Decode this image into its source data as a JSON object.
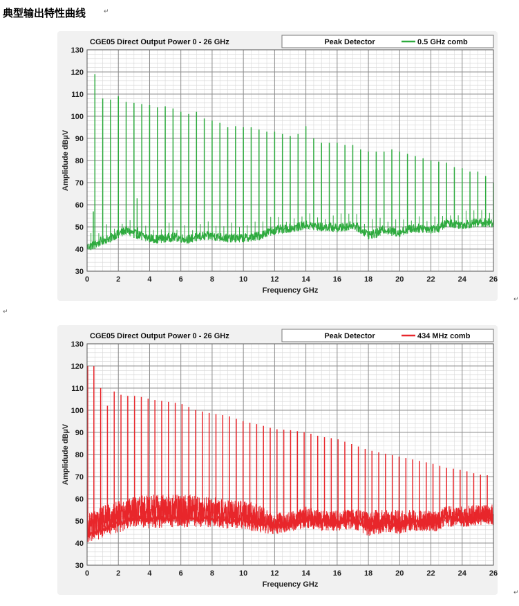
{
  "document": {
    "title": "典型输出特性曲线",
    "para_mark": "↵"
  },
  "chart_data": [
    {
      "type": "line",
      "title": "CGE05 Direct Output Power 0 - 26 GHz",
      "detector_label": "Peak Detector",
      "xlabel": "Frequency GHz",
      "ylabel": "Amplidude dBµV",
      "xlim": [
        0,
        26
      ],
      "ylim": [
        30,
        130
      ],
      "xticks": [
        "0",
        "2",
        "4",
        "6",
        "8",
        "10",
        "12",
        "14",
        "16",
        "18",
        "20",
        "22",
        "24",
        "26"
      ],
      "yticks": [
        "130",
        "120",
        "110",
        "100",
        "90",
        "80",
        "70",
        "60",
        "50",
        "40",
        "30"
      ],
      "grid": true,
      "legend_position": "top-right",
      "comb_spacing_ghz": 0.5,
      "series": [
        {
          "name": "0.5 GHz comb",
          "color": "#2eaa3e",
          "comb_frequencies_ghz": [
            0.5,
            1.0,
            1.5,
            2.0,
            2.5,
            3.0,
            3.5,
            4.0,
            4.5,
            5.0,
            5.5,
            6.0,
            6.5,
            7.0,
            7.5,
            8.0,
            8.5,
            9.0,
            9.5,
            10.0,
            10.5,
            11.0,
            11.5,
            12.0,
            12.5,
            13.0,
            13.5,
            14.0,
            14.5,
            15.0,
            15.5,
            16.0,
            16.5,
            17.0,
            17.5,
            18.0,
            18.5,
            19.0,
            19.5,
            20.0,
            20.5,
            21.0,
            21.5,
            22.0,
            22.5,
            23.0,
            23.5,
            24.0,
            24.5,
            25.0,
            25.5,
            26.0
          ],
          "peak_levels_dbuv": [
            119,
            108,
            107.5,
            109,
            106.5,
            106,
            105.5,
            105,
            104,
            104.5,
            103.5,
            102,
            101,
            102,
            99,
            98,
            97,
            95,
            95.5,
            95,
            95,
            94,
            93,
            93,
            92,
            91,
            92,
            95.5,
            90,
            88,
            88,
            88,
            87,
            87,
            85,
            84,
            84,
            84,
            85,
            84,
            83,
            82,
            81,
            80,
            79.5,
            79,
            77,
            76.5,
            75,
            75,
            73,
            70
          ],
          "noise_floor_points": [
            [
              0,
              41
            ],
            [
              0.5,
              42
            ],
            [
              1,
              44
            ],
            [
              1.5,
              45
            ],
            [
              2,
              47
            ],
            [
              2.5,
              48.5
            ],
            [
              3,
              47
            ],
            [
              3.5,
              46
            ],
            [
              4,
              45
            ],
            [
              4.5,
              44.5
            ],
            [
              5,
              45
            ],
            [
              5.5,
              45.5
            ],
            [
              6,
              45
            ],
            [
              6.5,
              44.5
            ],
            [
              7,
              45.5
            ],
            [
              7.5,
              46
            ],
            [
              8,
              46
            ],
            [
              8.5,
              45.5
            ],
            [
              9,
              45
            ],
            [
              9.5,
              45
            ],
            [
              10,
              45
            ],
            [
              10.5,
              45.5
            ],
            [
              11,
              46
            ],
            [
              11.5,
              47.5
            ],
            [
              12,
              48.5
            ],
            [
              12.5,
              49
            ],
            [
              13,
              49.5
            ],
            [
              13.5,
              50
            ],
            [
              14,
              51
            ],
            [
              14.5,
              50.5
            ],
            [
              15,
              50
            ],
            [
              15.5,
              50
            ],
            [
              16,
              49.5
            ],
            [
              16.5,
              50
            ],
            [
              17,
              51
            ],
            [
              17.5,
              49
            ],
            [
              18,
              46.5
            ],
            [
              18.5,
              47
            ],
            [
              19,
              49
            ],
            [
              19.5,
              48
            ],
            [
              20,
              47.5
            ],
            [
              20.5,
              49
            ],
            [
              21,
              49.5
            ],
            [
              21.5,
              49.5
            ],
            [
              22,
              49
            ],
            [
              22.5,
              49.5
            ],
            [
              23,
              52
            ],
            [
              23.5,
              51.5
            ],
            [
              24,
              51
            ],
            [
              24.5,
              51.5
            ],
            [
              25,
              52
            ],
            [
              25.5,
              52
            ],
            [
              26,
              52
            ]
          ],
          "extra_spikes": [
            [
              0.4,
              57
            ],
            [
              3.2,
              63
            ],
            [
              14,
              66
            ]
          ]
        }
      ]
    },
    {
      "type": "line",
      "title": "CGE05 Direct Output Power 0 - 26 GHz",
      "detector_label": "Peak Detector",
      "xlabel": "Frequency GHz",
      "ylabel": "Amplidude dBµV",
      "xlim": [
        0,
        26
      ],
      "ylim": [
        30,
        130
      ],
      "xticks": [
        "0",
        "2",
        "4",
        "6",
        "8",
        "10",
        "12",
        "14",
        "16",
        "18",
        "20",
        "22",
        "24",
        "26"
      ],
      "yticks": [
        "130",
        "120",
        "110",
        "100",
        "90",
        "80",
        "70",
        "60",
        "50",
        "40",
        "30"
      ],
      "grid": true,
      "legend_position": "top-right",
      "comb_spacing_ghz": 0.434,
      "series": [
        {
          "name": "434 MHz comb",
          "color": "#e8262b",
          "peak_level_points": [
            [
              0,
              120
            ],
            [
              0.43,
              120
            ],
            [
              0.87,
              110
            ],
            [
              1.3,
              102
            ],
            [
              1.74,
              108.5
            ],
            [
              2.17,
              107
            ],
            [
              2.6,
              106.5
            ],
            [
              3.04,
              106.5
            ],
            [
              3.5,
              106
            ],
            [
              4,
              105
            ],
            [
              5,
              104
            ],
            [
              6,
              103
            ],
            [
              7,
              100
            ],
            [
              8,
              98.5
            ],
            [
              9,
              97.5
            ],
            [
              10,
              95
            ],
            [
              11,
              93.5
            ],
            [
              12,
              91.5
            ],
            [
              13,
              91
            ],
            [
              14,
              90
            ],
            [
              15,
              88
            ],
            [
              16,
              87
            ],
            [
              17,
              84.5
            ],
            [
              18,
              82
            ],
            [
              19,
              80.5
            ],
            [
              20,
              79
            ],
            [
              21,
              77.5
            ],
            [
              22,
              76
            ],
            [
              23,
              74
            ],
            [
              24,
              73
            ],
            [
              25,
              71
            ],
            [
              25.8,
              70.5
            ]
          ],
          "noise_floor_points": [
            [
              0,
              44
            ],
            [
              0.5,
              45
            ],
            [
              1,
              46
            ],
            [
              1.5,
              47.5
            ],
            [
              2,
              48.5
            ],
            [
              2.5,
              50
            ],
            [
              3,
              51
            ],
            [
              3.5,
              51
            ],
            [
              4,
              50.5
            ],
            [
              5,
              51
            ],
            [
              6,
              51
            ],
            [
              7,
              51
            ],
            [
              8,
              51
            ],
            [
              9,
              50.5
            ],
            [
              10,
              50
            ],
            [
              10.5,
              49.5
            ],
            [
              11,
              49
            ],
            [
              11.5,
              48
            ],
            [
              12,
              48
            ],
            [
              12.5,
              48.5
            ],
            [
              13,
              49
            ],
            [
              13.5,
              49.5
            ],
            [
              14,
              51
            ],
            [
              14.5,
              50
            ],
            [
              15,
              49.5
            ],
            [
              16,
              49.5
            ],
            [
              17,
              50.5
            ],
            [
              17.5,
              49
            ],
            [
              18,
              47
            ],
            [
              18.5,
              47.5
            ],
            [
              19,
              49
            ],
            [
              19.5,
              48.5
            ],
            [
              20,
              48
            ],
            [
              20.5,
              49
            ],
            [
              21,
              49.5
            ],
            [
              22,
              49
            ],
            [
              22.5,
              49.5
            ],
            [
              23,
              51.5
            ],
            [
              23.5,
              51
            ],
            [
              24,
              51
            ],
            [
              25,
              52
            ],
            [
              26,
              52
            ]
          ],
          "hump_points": [
            [
              0,
              49
            ],
            [
              1,
              53
            ],
            [
              2,
              55
            ],
            [
              3,
              57
            ],
            [
              4,
              58
            ],
            [
              6,
              58
            ],
            [
              8,
              57
            ],
            [
              9,
              56
            ],
            [
              10,
              55
            ],
            [
              11,
              54
            ],
            [
              11.5,
              51
            ],
            [
              12,
              49
            ],
            [
              13,
              50
            ],
            [
              14,
              51
            ],
            [
              26,
              51
            ]
          ]
        }
      ]
    }
  ]
}
